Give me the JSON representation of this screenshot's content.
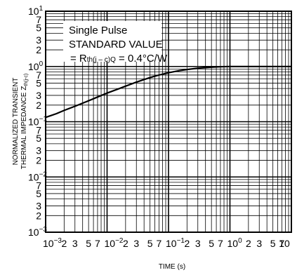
{
  "chart_data": {
    "type": "line",
    "title": "",
    "xlabel": "TIME (s)",
    "ylabel_line1": "NORMALIZED TRANSIENT",
    "ylabel_line2": "THERMAL IMPEDANCE Z",
    "ylabel_sub": "th(j-c)",
    "x_scale": "log",
    "y_scale": "log",
    "xlim": [
      0.001,
      10
    ],
    "ylim": [
      0.001,
      10
    ],
    "grid": true,
    "legend": "none",
    "annotations": {
      "line1": "Single Pulse",
      "line2": "STANDARD VALUE",
      "line3_prefix": "= R",
      "line3_sub": "th(j – c)Q",
      "line3_suffix": " = 0.4°C/W"
    },
    "x_major_ticks": [
      {
        "value": 0.001,
        "base": "10",
        "exp": "−3"
      },
      {
        "value": 0.01,
        "base": "10",
        "exp": "−2"
      },
      {
        "value": 0.1,
        "base": "10",
        "exp": "−1"
      },
      {
        "value": 1,
        "base": "10",
        "exp": "0"
      },
      {
        "value": 10,
        "base": "10",
        "exp": ""
      }
    ],
    "x_minor_labels": [
      {
        "value": 0.002,
        "label": "2"
      },
      {
        "value": 0.003,
        "label": "3"
      },
      {
        "value": 0.005,
        "label": "5"
      },
      {
        "value": 0.007,
        "label": "7"
      },
      {
        "value": 0.02,
        "label": "2"
      },
      {
        "value": 0.03,
        "label": "3"
      },
      {
        "value": 0.05,
        "label": "5"
      },
      {
        "value": 0.07,
        "label": "7"
      },
      {
        "value": 0.2,
        "label": "2"
      },
      {
        "value": 0.3,
        "label": "3"
      },
      {
        "value": 0.5,
        "label": "5"
      },
      {
        "value": 0.7,
        "label": "7"
      },
      {
        "value": 2,
        "label": "2"
      },
      {
        "value": 3,
        "label": "3"
      },
      {
        "value": 5,
        "label": "5"
      },
      {
        "value": 7,
        "label": "7"
      }
    ],
    "y_major_ticks": [
      {
        "value": 10,
        "base": "10",
        "exp": "1"
      },
      {
        "value": 1,
        "base": "10",
        "exp": "0"
      },
      {
        "value": 0.1,
        "base": "10",
        "exp": "−1"
      },
      {
        "value": 0.01,
        "base": "10",
        "exp": "−2"
      },
      {
        "value": 0.001,
        "base": "10",
        "exp": "−3"
      }
    ],
    "y_minor_labels": [
      {
        "value": 7,
        "label": "7"
      },
      {
        "value": 5,
        "label": "5"
      },
      {
        "value": 3,
        "label": "3"
      },
      {
        "value": 2,
        "label": "2"
      },
      {
        "value": 0.7,
        "label": "7"
      },
      {
        "value": 0.5,
        "label": "5"
      },
      {
        "value": 0.3,
        "label": "3"
      },
      {
        "value": 0.2,
        "label": "2"
      },
      {
        "value": 0.07,
        "label": "7"
      },
      {
        "value": 0.05,
        "label": "5"
      },
      {
        "value": 0.03,
        "label": "3"
      },
      {
        "value": 0.02,
        "label": "2"
      },
      {
        "value": 0.007,
        "label": "7"
      },
      {
        "value": 0.005,
        "label": "5"
      },
      {
        "value": 0.003,
        "label": "3"
      },
      {
        "value": 0.002,
        "label": "2"
      }
    ],
    "series": [
      {
        "x": [
          0.001,
          0.0015,
          0.002,
          0.003,
          0.005,
          0.007,
          0.01,
          0.015,
          0.02,
          0.03,
          0.05,
          0.07,
          0.1,
          0.15,
          0.2,
          0.3,
          0.5,
          0.7,
          1,
          2,
          5,
          10
        ],
        "y": [
          0.12,
          0.14,
          0.16,
          0.19,
          0.24,
          0.28,
          0.33,
          0.39,
          0.44,
          0.52,
          0.63,
          0.7,
          0.77,
          0.84,
          0.88,
          0.93,
          0.97,
          0.99,
          1.0,
          1.0,
          1.0,
          1.0
        ]
      }
    ]
  }
}
